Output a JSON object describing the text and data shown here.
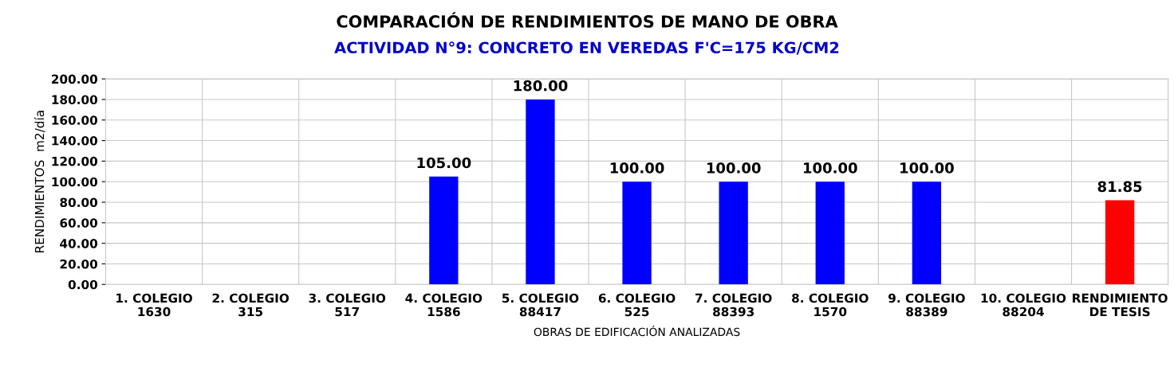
{
  "chart_data": {
    "type": "bar",
    "title": "COMPARACIÓN DE RENDIMIENTOS DE MANO DE OBRA",
    "subtitle": "ACTIVIDAD N°9: CONCRETO EN VEREDAS F'C=175 KG/CM2",
    "xlabel": "OBRAS DE EDIFICACIÓN ANALIZADAS",
    "ylabel": "RENDIMIENTOS  m2/día",
    "categories": [
      "1. COLEGIO\n1630",
      "2. COLEGIO\n315",
      "3. COLEGIO\n517",
      "4. COLEGIO\n1586",
      "5. COLEGIO\n88417",
      "6. COLEGIO\n525",
      "7. COLEGIO\n88393",
      "8. COLEGIO\n1570",
      "9. COLEGIO\n88389",
      "10. COLEGIO\n88204",
      "RENDIMIENTO\nDE TESIS"
    ],
    "values": [
      null,
      null,
      null,
      105,
      180,
      100,
      100,
      100,
      100,
      null,
      81.85
    ],
    "colors": [
      "#0000ff",
      "#0000ff",
      "#0000ff",
      "#0000ff",
      "#0000ff",
      "#0000ff",
      "#0000ff",
      "#0000ff",
      "#0000ff",
      "#0000ff",
      "#ff0000"
    ],
    "value_labels": [
      null,
      null,
      null,
      "105.00",
      "180.00",
      "100.00",
      "100.00",
      "100.00",
      "100.00",
      null,
      "81.85"
    ],
    "ylim": [
      0,
      200
    ],
    "yticks": [
      {
        "value": 0,
        "label": "0.00"
      },
      {
        "value": 20,
        "label": "20.00"
      },
      {
        "value": 40,
        "label": "40.00"
      },
      {
        "value": 60,
        "label": "60.00"
      },
      {
        "value": 80,
        "label": "80.00"
      },
      {
        "value": 100,
        "label": "100.00"
      },
      {
        "value": 120,
        "label": "120.00"
      },
      {
        "value": 140,
        "label": "140.00"
      },
      {
        "value": 160,
        "label": "160.00"
      },
      {
        "value": 180,
        "label": "180.00"
      },
      {
        "value": 200,
        "label": "200.00"
      }
    ],
    "grid": true,
    "legend": false
  }
}
